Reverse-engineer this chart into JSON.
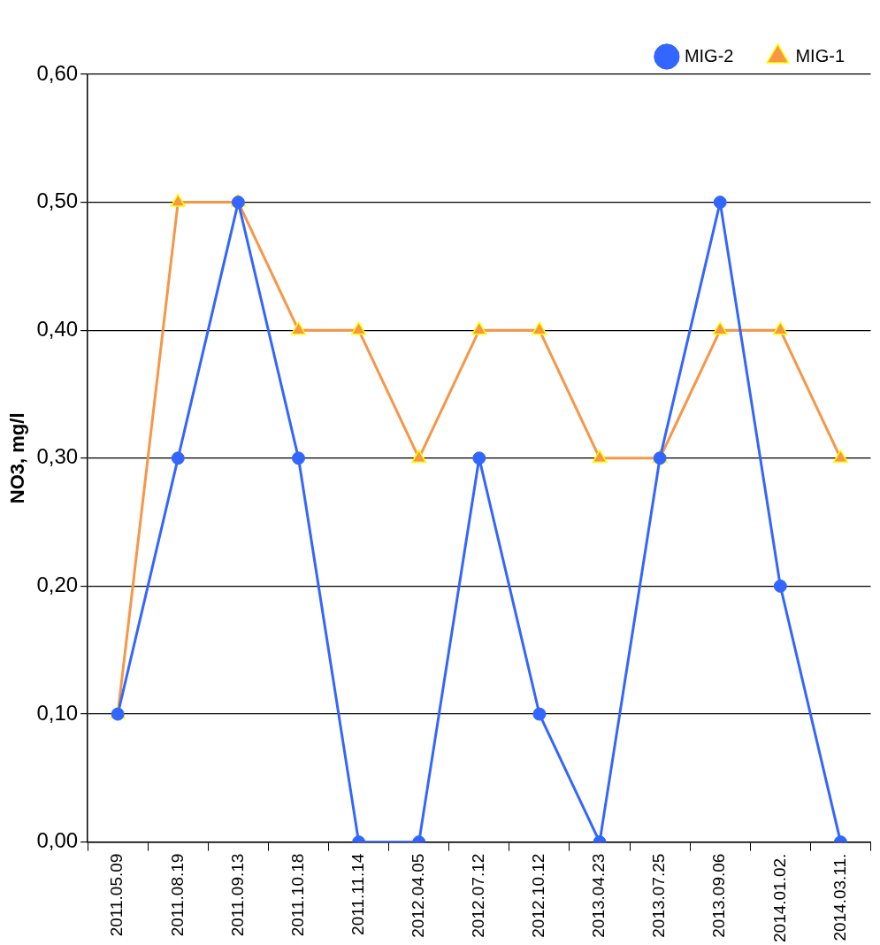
{
  "chart_data": {
    "type": "line",
    "ylabel": "NO3, mg/l",
    "categories": [
      "2011.05.09",
      "2011.08.19",
      "2011.09.13",
      "2011.10.18",
      "2011.11.14",
      "2012.04.05",
      "2012.07.12",
      "2012.10.12",
      "2013.04.23",
      "2013.07.25",
      "2013.09.06",
      "2014.01.02.",
      "2014.03.11."
    ],
    "series": [
      {
        "name": "MIG-1",
        "color": "#f79646",
        "marker": "triangle",
        "values": [
          0.1,
          0.5,
          0.5,
          0.4,
          0.4,
          0.3,
          0.4,
          0.4,
          0.3,
          0.3,
          0.4,
          0.4,
          0.3
        ]
      },
      {
        "name": "MIG-2",
        "color": "#3366ff",
        "marker": "circle",
        "values": [
          0.1,
          0.3,
          0.5,
          0.3,
          0,
          0,
          0.3,
          0.1,
          0,
          0.3,
          0.5,
          0.2,
          0
        ]
      }
    ],
    "ylim": [
      0,
      0.6
    ],
    "yticks": [
      {
        "value": 0,
        "label": "0,00"
      },
      {
        "value": 0.1,
        "label": "0,10"
      },
      {
        "value": 0.2,
        "label": "0,20"
      },
      {
        "value": 0.3,
        "label": "0,30"
      },
      {
        "value": 0.4,
        "label": "0,40"
      },
      {
        "value": 0.5,
        "label": "0,50"
      },
      {
        "value": 0.6,
        "label": "0,60"
      }
    ],
    "grid": "y",
    "legend": "top right",
    "line_style": "solid"
  }
}
